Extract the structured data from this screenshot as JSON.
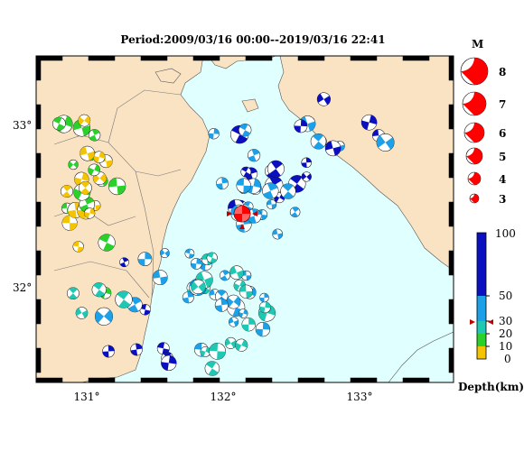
{
  "title": "Period:2009/03/16 00:00--2019/03/16 22:41",
  "latitude_labels": [
    "33°",
    "32°"
  ],
  "longitude_labels": [
    "131°",
    "132°",
    "133°"
  ],
  "magnitude_legend": {
    "heading": "M",
    "values": [
      "8",
      "7",
      "6",
      "5",
      "4",
      "3"
    ]
  },
  "depth_legend": {
    "ticks": [
      "100",
      "50",
      "30",
      "20",
      "10",
      "0"
    ],
    "unit_label": "Depth(km)",
    "colors": {
      "shallow_0_10": "#f5c400",
      "range_10_20": "#2bd12b",
      "range_20_30": "#1fc8b2",
      "range_30_50": "#1ca0e8",
      "deep_50_100": "#0a10c0"
    }
  },
  "colors": {
    "sea": "#e0ffff",
    "land": "#fae3c3",
    "main_event": "#ff0000"
  }
}
